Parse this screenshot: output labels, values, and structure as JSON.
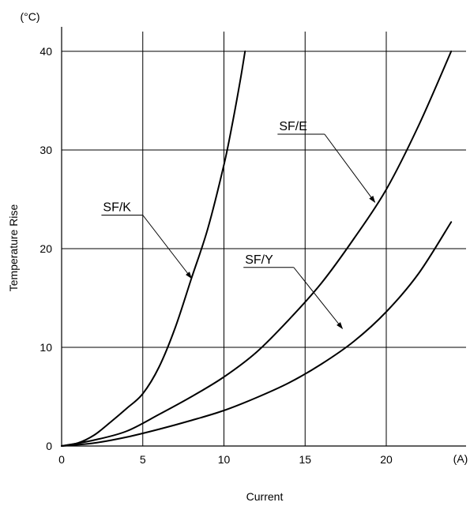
{
  "chart_data": {
    "type": "line",
    "title": "",
    "xlabel": "Current",
    "ylabel": "Temperature Rise",
    "x_unit": "(A)",
    "y_unit": "(°C)",
    "xlim": [
      0,
      25
    ],
    "ylim": [
      0,
      40
    ],
    "x_ticks": [
      "0",
      "5",
      "10",
      "15",
      "20"
    ],
    "y_ticks": [
      "0",
      "10",
      "20",
      "30",
      "40"
    ],
    "grid": true,
    "series": [
      {
        "name": "SF/K",
        "x": [
          0,
          1,
          2,
          3,
          4,
          5,
          6,
          7,
          8,
          9,
          10,
          10.5,
          11,
          11.3
        ],
        "y": [
          0,
          0.3,
          1.1,
          2.4,
          3.8,
          5.3,
          8.0,
          12.0,
          17.0,
          22.0,
          28.5,
          32.5,
          37.0,
          40
        ]
      },
      {
        "name": "SF/E",
        "x": [
          0,
          2,
          4,
          6,
          8,
          10,
          12,
          14,
          16,
          18,
          20,
          22,
          24
        ],
        "y": [
          0,
          0.6,
          1.5,
          3.2,
          5.0,
          7.0,
          9.5,
          12.8,
          16.5,
          21.0,
          26.0,
          32.5,
          40
        ]
      },
      {
        "name": "SF/Y",
        "x": [
          0,
          2,
          4,
          6,
          8,
          10,
          12,
          14,
          16,
          18,
          20,
          22,
          24
        ],
        "y": [
          0,
          0.3,
          0.9,
          1.7,
          2.6,
          3.6,
          4.9,
          6.4,
          8.3,
          10.6,
          13.6,
          17.5,
          22.7
        ]
      }
    ],
    "annotations": [
      {
        "text": "SF/K",
        "points_to_series": "SF/K",
        "label_x": 2.55,
        "label_y": 23.8,
        "elbow_x": 5.0,
        "arrow_x": 8.0,
        "arrow_y": 17.0
      },
      {
        "text": "SF/E",
        "points_to_series": "SF/E",
        "label_x": 13.4,
        "label_y": 32.0,
        "elbow_x": 16.2,
        "arrow_x": 19.3,
        "arrow_y": 24.7
      },
      {
        "text": "SF/Y",
        "points_to_series": "SF/Y",
        "label_x": 11.3,
        "label_y": 18.5,
        "elbow_x": 14.3,
        "arrow_x": 17.3,
        "arrow_y": 11.9
      }
    ]
  }
}
